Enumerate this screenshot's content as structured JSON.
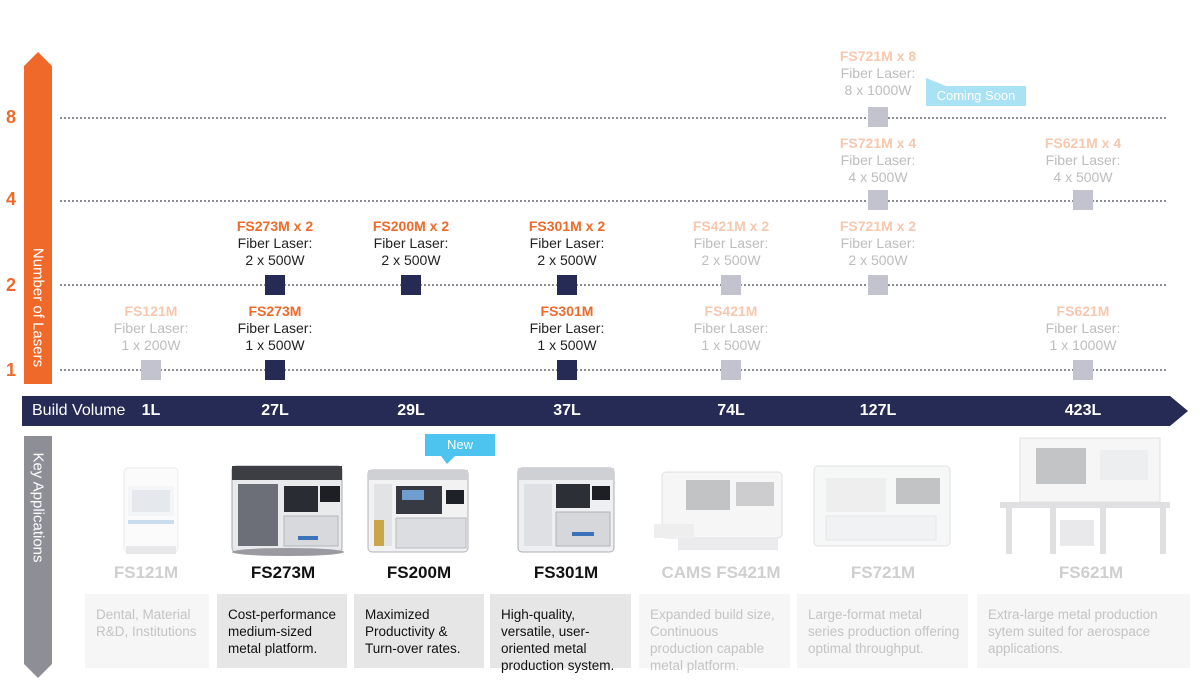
{
  "y_axis": {
    "label": "Number of Lasers",
    "ticks": [
      "1",
      "2",
      "4",
      "8"
    ]
  },
  "x_axis": {
    "label": "Build Volume",
    "volumes": [
      "1L",
      "27L",
      "29L",
      "37L",
      "74L",
      "127L",
      "423L"
    ]
  },
  "side_label_bottom": "Key Applications",
  "badges": {
    "coming_soon": "Coming Soon",
    "new": "New"
  },
  "lasers": [
    {
      "name": "FS121M",
      "line1": "Fiber Laser:",
      "line2": "1 x 200W",
      "status": "faded"
    },
    {
      "name": "FS273M",
      "line1": "Fiber Laser:",
      "line2": "1 x 500W",
      "status": "active"
    },
    {
      "name": "FS301M",
      "line1": "Fiber Laser:",
      "line2": "1 x 500W",
      "status": "active"
    },
    {
      "name": "FS421M",
      "line1": "Fiber Laser:",
      "line2": "1 x 500W",
      "status": "faded"
    },
    {
      "name": "FS621M",
      "line1": "Fiber Laser:",
      "line2": "1 x 1000W",
      "status": "faded"
    },
    {
      "name": "FS273M x 2",
      "line1": "Fiber Laser:",
      "line2": "2 x 500W",
      "status": "active"
    },
    {
      "name": "FS200M x 2",
      "line1": "Fiber Laser:",
      "line2": "2 x 500W",
      "status": "active"
    },
    {
      "name": "FS301M x 2",
      "line1": "Fiber Laser:",
      "line2": "2 x 500W",
      "status": "active"
    },
    {
      "name": "FS421M x 2",
      "line1": "Fiber Laser:",
      "line2": "2 x 500W",
      "status": "faded"
    },
    {
      "name": "FS721M x 2",
      "line1": "Fiber Laser:",
      "line2": "2 x 500W",
      "status": "faded"
    },
    {
      "name": "FS721M x 4",
      "line1": "Fiber Laser:",
      "line2": "4 x 500W",
      "status": "faded"
    },
    {
      "name": "FS621M x 4",
      "line1": "Fiber Laser:",
      "line2": "4 x 500W",
      "status": "faded"
    },
    {
      "name": "FS721M x 8",
      "line1": "Fiber Laser:",
      "line2": "8 x 1000W",
      "status": "faded"
    }
  ],
  "machines": [
    {
      "name": "FS121M",
      "status": "faded",
      "description": "Dental, Material R&D, Institutions"
    },
    {
      "name": "FS273M",
      "status": "active",
      "description": "Cost-performance medium-sized metal platform."
    },
    {
      "name": "FS200M",
      "status": "active",
      "description": "Maximized Productivity & Turn-over rates."
    },
    {
      "name": "FS301M",
      "status": "active",
      "description": "High-quality, versatile, user-oriented metal production system."
    },
    {
      "name": "CAMS FS421M",
      "status": "faded",
      "description": "Expanded build size, Continuous production capable metal platform."
    },
    {
      "name": "FS721M",
      "status": "faded",
      "description": "Large-format metal series production offering optimal throughput."
    },
    {
      "name": "FS621M",
      "status": "faded",
      "description": "Extra-large metal production sytem suited for aerospace applications."
    }
  ],
  "colors": {
    "orange": "#ef6a2a",
    "navy": "#252b54",
    "gray_bar": "#8e8e96",
    "badge_blue": "#4dc3ef",
    "coming_soon_blue": "#a9e1f5",
    "faded_marker": "#c3c3cf"
  }
}
